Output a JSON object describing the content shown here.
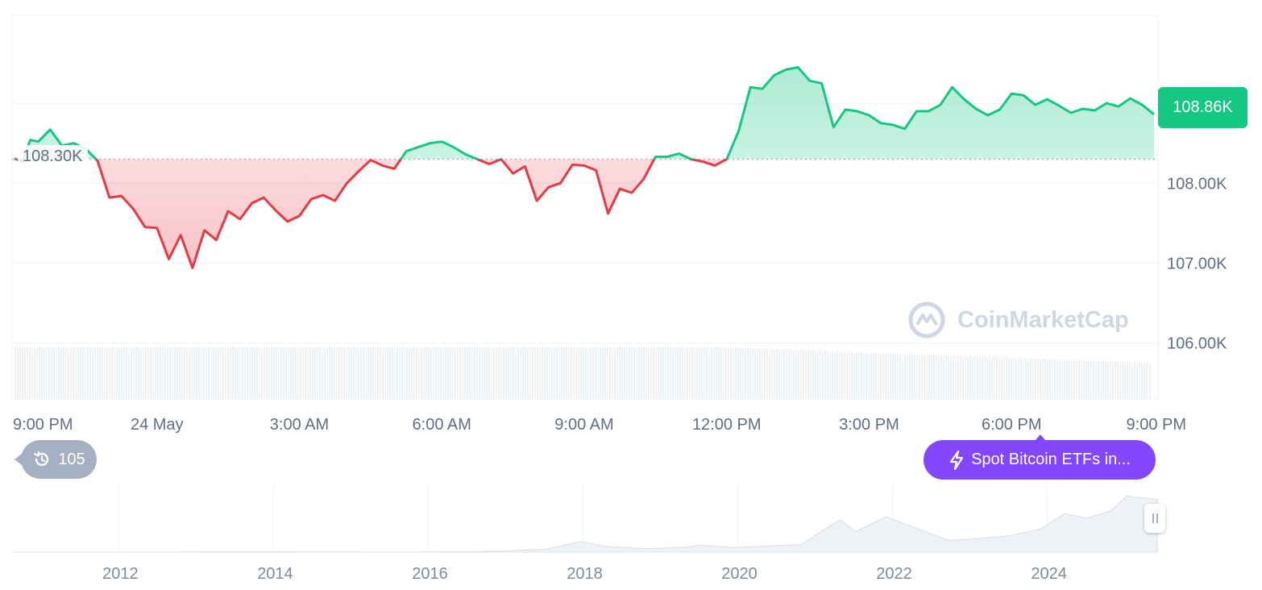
{
  "chart_data": [
    {
      "type": "area",
      "x_tick_labels": [
        "9:00 PM",
        "24 May",
        "3:00 AM",
        "6:00 AM",
        "9:00 AM",
        "12:00 PM",
        "3:00 PM",
        "6:00 PM",
        "9:00 PM"
      ],
      "y_tick_labels": [
        "108.00K",
        "107.00K",
        "106.00K"
      ],
      "ylim": [
        105.3,
        110.1
      ],
      "baseline_value": 108.3,
      "baseline_label": "108.30K",
      "current_value": 108.86,
      "current_label": "108.86K",
      "above_color": "#16c784",
      "below_color": "#ea3943",
      "grid": true,
      "x_index": [
        0,
        2,
        4,
        6,
        9,
        12,
        15,
        18,
        21,
        24,
        27,
        30,
        33,
        36,
        39,
        42,
        45,
        48,
        51,
        54,
        57,
        60,
        63,
        66,
        69,
        72,
        75,
        78,
        81,
        84,
        87,
        90,
        93,
        96,
        99,
        102,
        105,
        108,
        111,
        114,
        117,
        120,
        123,
        126,
        129,
        132,
        135,
        138,
        141,
        144,
        147,
        150,
        153,
        156,
        159,
        162,
        165,
        168,
        171,
        174,
        177,
        180,
        183,
        186,
        189,
        192,
        195,
        198,
        201,
        204,
        207,
        210,
        213,
        216,
        219,
        222,
        225,
        228,
        231,
        234,
        237,
        240,
        243,
        246,
        249,
        252,
        255,
        258,
        261,
        264,
        267,
        270,
        273,
        276,
        279,
        282,
        285,
        288
      ],
      "values": [
        108.31,
        108.27,
        108.54,
        108.52,
        108.67,
        108.47,
        108.5,
        108.43,
        108.28,
        107.82,
        107.84,
        107.68,
        107.45,
        107.44,
        107.05,
        107.35,
        106.94,
        107.41,
        107.29,
        107.65,
        107.55,
        107.75,
        107.82,
        107.66,
        107.52,
        107.59,
        107.8,
        107.85,
        107.78,
        108.0,
        108.15,
        108.29,
        108.22,
        108.18,
        108.4,
        108.45,
        108.5,
        108.52,
        108.45,
        108.36,
        108.3,
        108.24,
        108.3,
        108.12,
        108.21,
        107.78,
        107.95,
        108.0,
        108.23,
        108.22,
        108.16,
        107.62,
        107.93,
        107.88,
        108.05,
        108.33,
        108.33,
        108.37,
        108.3,
        108.27,
        108.22,
        108.3,
        108.65,
        109.2,
        109.18,
        109.35,
        109.42,
        109.45,
        109.28,
        109.25,
        108.7,
        108.92,
        108.9,
        108.85,
        108.75,
        108.73,
        108.68,
        108.9,
        108.9,
        108.98,
        109.2,
        109.05,
        108.93,
        108.85,
        108.92,
        109.12,
        109.1,
        108.98,
        109.05,
        108.97,
        108.88,
        108.93,
        108.91,
        109.0,
        108.96,
        109.06,
        108.98,
        108.86
      ],
      "volume_note": ""
    },
    {
      "type": "area",
      "x_tick_labels": [
        "2012",
        "2014",
        "2016",
        "2018",
        "2020",
        "2022",
        "2024"
      ],
      "x_years": [
        2010.6,
        2011.5,
        2012.5,
        2013.5,
        2014.5,
        2015.5,
        2016.5,
        2017.0,
        2017.5,
        2017.95,
        2018.3,
        2018.8,
        2019.3,
        2019.5,
        2019.9,
        2020.3,
        2020.8,
        2021.0,
        2021.3,
        2021.5,
        2021.9,
        2022.3,
        2022.7,
        2023.0,
        2023.5,
        2023.9,
        2024.2,
        2024.5,
        2024.8,
        2025.0,
        2025.4
      ],
      "values": [
        0,
        0,
        0.001,
        0.01,
        0.005,
        0.003,
        0.008,
        0.02,
        0.05,
        0.18,
        0.09,
        0.06,
        0.08,
        0.12,
        0.08,
        0.1,
        0.13,
        0.3,
        0.55,
        0.35,
        0.6,
        0.4,
        0.2,
        0.22,
        0.28,
        0.4,
        0.65,
        0.58,
        0.7,
        0.95,
        0.9
      ]
    }
  ],
  "watermark": "CoinMarketCap",
  "history": {
    "count": "105",
    "icon": "history-icon"
  },
  "event": {
    "label": "Spot Bitcoin ETFs in...",
    "icon": "lightning-icon",
    "color": "#8247ff"
  },
  "range_handle": {
    "icon": "pause-grip-icon"
  }
}
